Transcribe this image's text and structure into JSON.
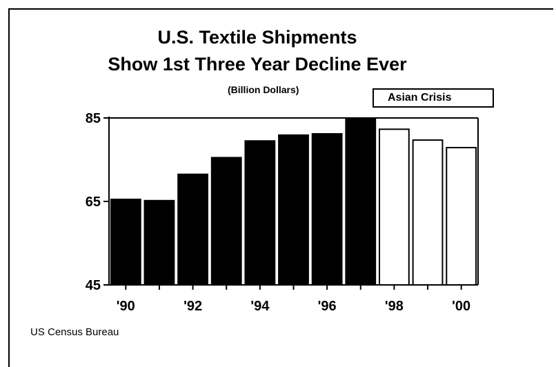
{
  "chart_data": {
    "type": "bar",
    "title": "U.S. Textile Shipments",
    "subtitle": "Show 1st Three Year Decline Ever",
    "unit_label": "(Billion Dollars)",
    "annotation": "Asian Crisis",
    "source": "US Census Bureau",
    "categories": [
      "1990",
      "1991",
      "1992",
      "1993",
      "1994",
      "1995",
      "1996",
      "1997",
      "1998",
      "1999",
      "2000"
    ],
    "values": [
      65.5,
      65.2,
      71.5,
      75.5,
      79.5,
      80.9,
      81.2,
      84.8,
      82.3,
      79.7,
      77.9
    ],
    "bar_fill": [
      "#000000",
      "#000000",
      "#000000",
      "#000000",
      "#000000",
      "#000000",
      "#000000",
      "#000000",
      "#ffffff",
      "#ffffff",
      "#ffffff"
    ],
    "x_tick_labels": [
      "'90",
      "'92",
      "'94",
      "'96",
      "'98",
      "'00"
    ],
    "y_ticks": [
      45,
      65,
      85
    ],
    "ylim": [
      45,
      85
    ],
    "xlabel": "",
    "ylabel": ""
  }
}
